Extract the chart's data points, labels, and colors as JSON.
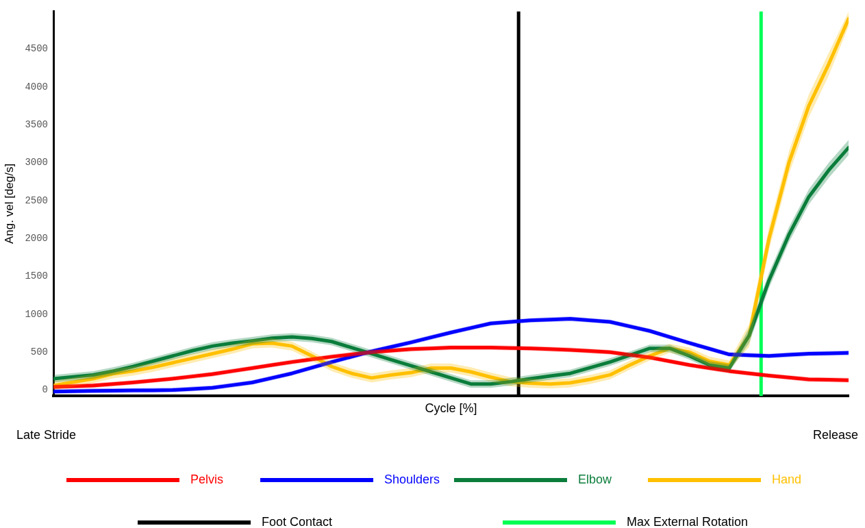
{
  "chart_data": {
    "type": "line",
    "xlabel": "Cycle [%]",
    "ylabel": "Ang. vel [deg/s]",
    "categories": [
      null,
      null,
      null,
      null,
      null,
      null,
      null,
      null,
      null,
      null,
      null,
      null,
      null,
      null,
      null,
      null,
      null,
      null,
      null,
      null,
      null,
      null,
      null,
      null,
      null,
      null,
      null,
      null,
      null,
      null,
      null,
      null,
      null,
      null,
      null,
      null,
      null,
      null,
      null,
      null,
      null
    ],
    "ylim": [
      -80,
      5000
    ],
    "yticks": [
      0,
      500,
      1000,
      1500,
      2000,
      2500,
      3000,
      3500,
      4000,
      4500
    ],
    "tick_labels": "y",
    "grid": false,
    "legend": "bottom",
    "marker": "none",
    "line_style": "solid",
    "series": [
      {
        "name": "Pelvis",
        "color": "#ff0000",
        "values": [
          40,
          50,
          60,
          80,
          100,
          125,
          150,
          180,
          210,
          250,
          290,
          330,
          370,
          405,
          440,
          470,
          500,
          520,
          540,
          550,
          560,
          560,
          560,
          555,
          550,
          540,
          530,
          515,
          500,
          465,
          430,
          380,
          330,
          290,
          250,
          220,
          190,
          165,
          140,
          135,
          130
        ],
        "lower": [
          10,
          20,
          30,
          50,
          70,
          95,
          120,
          150,
          180,
          220,
          260,
          300,
          340,
          375,
          410,
          440,
          470,
          490,
          510,
          520,
          530,
          530,
          530,
          525,
          520,
          510,
          500,
          485,
          470,
          435,
          400,
          350,
          300,
          260,
          220,
          190,
          160,
          135,
          110,
          105,
          100
        ],
        "upper": [
          70,
          80,
          90,
          110,
          130,
          155,
          180,
          210,
          240,
          280,
          320,
          360,
          400,
          435,
          470,
          500,
          530,
          550,
          570,
          580,
          590,
          590,
          590,
          585,
          580,
          570,
          560,
          545,
          530,
          495,
          460,
          410,
          360,
          320,
          280,
          250,
          220,
          195,
          170,
          165,
          160
        ]
      },
      {
        "name": "Shoulders",
        "color": "#0000ff",
        "values": [
          -20,
          -15,
          -10,
          -8,
          -5,
          -3,
          0,
          15,
          30,
          65,
          100,
          160,
          220,
          295,
          370,
          440,
          510,
          570,
          630,
          695,
          760,
          820,
          880,
          900,
          920,
          930,
          940,
          920,
          900,
          840,
          780,
          700,
          620,
          545,
          470,
          460,
          450,
          465,
          480,
          485,
          490
        ],
        "lower": [
          -50,
          -45,
          -40,
          -38,
          -35,
          -33,
          -30,
          -15,
          0,
          35,
          70,
          130,
          190,
          265,
          340,
          410,
          480,
          540,
          600,
          665,
          730,
          790,
          850,
          870,
          890,
          900,
          910,
          890,
          870,
          810,
          750,
          670,
          590,
          515,
          440,
          430,
          420,
          435,
          450,
          455,
          460
        ],
        "upper": [
          10,
          15,
          20,
          22,
          25,
          27,
          30,
          45,
          60,
          95,
          130,
          190,
          250,
          325,
          400,
          470,
          540,
          600,
          660,
          725,
          790,
          850,
          910,
          930,
          950,
          960,
          970,
          950,
          930,
          870,
          810,
          730,
          650,
          575,
          500,
          490,
          480,
          495,
          510,
          515,
          520
        ]
      },
      {
        "name": "Elbow",
        "color": "#0b7d3b",
        "values": [
          150,
          175,
          200,
          250,
          310,
          380,
          450,
          520,
          580,
          620,
          650,
          685,
          700,
          680,
          640,
          560,
          480,
          400,
          320,
          240,
          160,
          80,
          80,
          110,
          150,
          185,
          220,
          295,
          370,
          460,
          550,
          550,
          450,
          330,
          290,
          720,
          1450,
          2050,
          2550,
          2900,
          3200
        ],
        "lower": [
          100,
          125,
          150,
          200,
          260,
          330,
          400,
          470,
          530,
          570,
          600,
          635,
          650,
          630,
          590,
          510,
          430,
          350,
          270,
          190,
          110,
          30,
          30,
          60,
          100,
          135,
          170,
          245,
          320,
          410,
          500,
          500,
          400,
          280,
          240,
          620,
          1350,
          1950,
          2450,
          2800,
          3100
        ],
        "upper": [
          200,
          225,
          250,
          300,
          360,
          430,
          500,
          570,
          630,
          670,
          700,
          735,
          750,
          730,
          690,
          610,
          530,
          450,
          370,
          290,
          210,
          130,
          130,
          160,
          200,
          235,
          270,
          345,
          420,
          510,
          600,
          600,
          500,
          380,
          340,
          820,
          1550,
          2150,
          2650,
          3000,
          3300
        ]
      },
      {
        "name": "Hand",
        "color": "#ffc000",
        "values": [
          60,
          105,
          150,
          215,
          250,
          300,
          360,
          420,
          480,
          540,
          610,
          620,
          580,
          450,
          310,
          220,
          160,
          200,
          230,
          290,
          290,
          240,
          170,
          110,
          90,
          80,
          95,
          140,
          200,
          330,
          450,
          550,
          500,
          380,
          330,
          720,
          2000,
          3000,
          3750,
          4300,
          4900
        ],
        "lower": [
          0,
          45,
          90,
          155,
          190,
          240,
          300,
          360,
          420,
          480,
          550,
          560,
          520,
          390,
          250,
          160,
          100,
          140,
          170,
          230,
          230,
          180,
          110,
          50,
          30,
          20,
          35,
          80,
          140,
          270,
          390,
          490,
          440,
          320,
          270,
          570,
          1850,
          2850,
          3600,
          4150,
          4800
        ],
        "upper": [
          120,
          165,
          210,
          275,
          310,
          360,
          420,
          480,
          540,
          600,
          670,
          680,
          640,
          510,
          370,
          280,
          220,
          260,
          290,
          350,
          350,
          300,
          230,
          170,
          150,
          140,
          155,
          200,
          260,
          390,
          510,
          610,
          560,
          440,
          390,
          870,
          2150,
          3150,
          3900,
          4450,
          4990
        ]
      }
    ],
    "ref_lines": [
      {
        "axis": "x",
        "label": "Foot Contact",
        "color": "#000000"
      },
      {
        "axis": "x",
        "label": "Max External Rotation",
        "color": "#00ff55"
      }
    ],
    "annotations": [
      "Late Stride",
      "Release"
    ]
  }
}
